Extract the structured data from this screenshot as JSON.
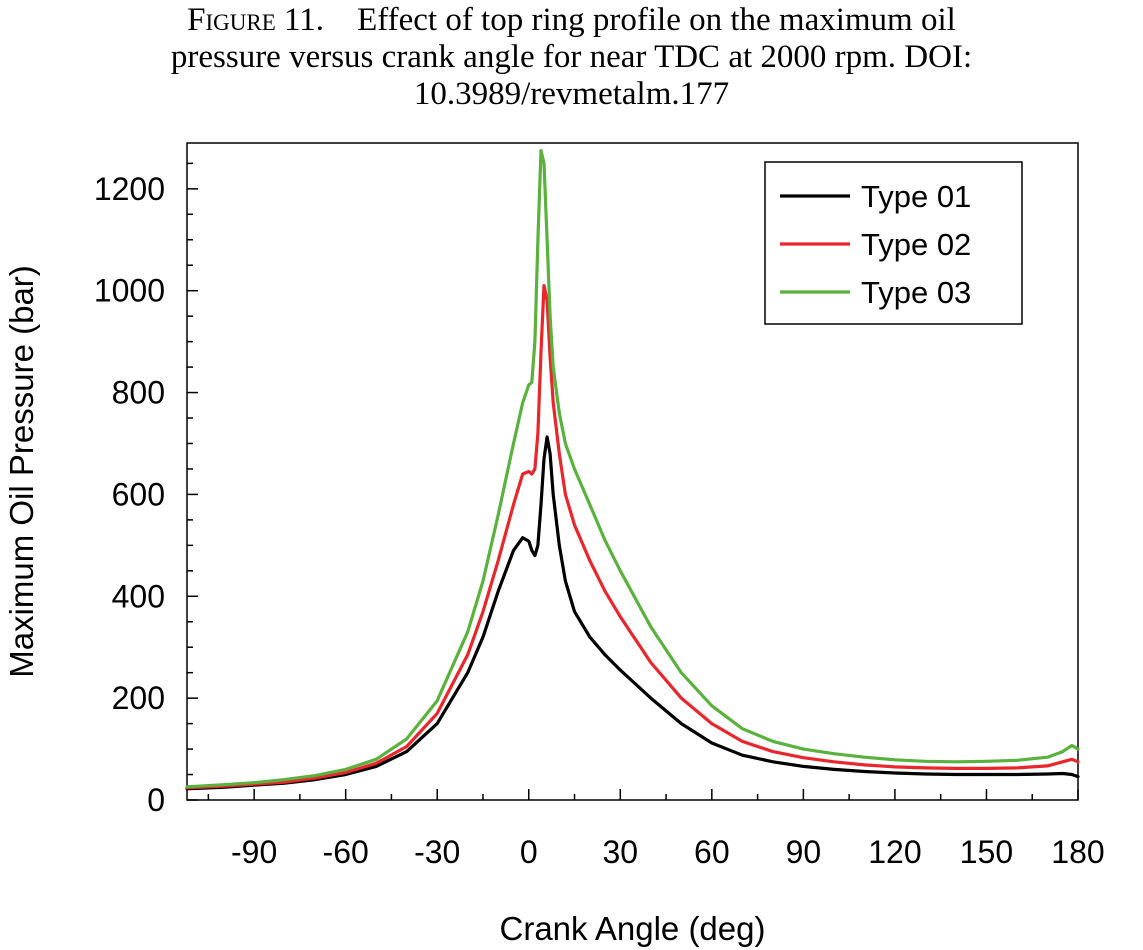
{
  "caption": {
    "prefix": "Figure 11.",
    "line1": "Effect of top ring profile on the maximum oil",
    "line2": "pressure versus crank angle for near TDC at 2000 rpm. DOI:",
    "line3": "10.3989/revmetalm.177"
  },
  "chart_data": {
    "type": "line",
    "title": "",
    "xlabel": "Crank Angle (deg)",
    "ylabel": "Maximum Oil Pressure (bar)",
    "xlim": [
      -112,
      180
    ],
    "ylim": [
      0,
      1290
    ],
    "xticks": [
      -90,
      -60,
      -30,
      0,
      30,
      60,
      90,
      120,
      150,
      180
    ],
    "yticks": [
      0,
      200,
      400,
      600,
      800,
      1000,
      1200
    ],
    "grid": false,
    "legend_position": "top-right",
    "series": [
      {
        "name": "Type 01",
        "color": "#000000",
        "x": [
          -112,
          -100,
          -90,
          -80,
          -70,
          -60,
          -50,
          -40,
          -30,
          -20,
          -15,
          -10,
          -5,
          -2,
          0,
          1,
          2,
          3,
          4,
          5,
          6,
          7,
          8,
          10,
          12,
          15,
          20,
          25,
          30,
          40,
          50,
          60,
          70,
          80,
          90,
          100,
          110,
          120,
          130,
          140,
          150,
          160,
          170,
          175,
          178,
          180
        ],
        "y": [
          22,
          25,
          29,
          33,
          40,
          50,
          66,
          95,
          150,
          250,
          320,
          410,
          490,
          515,
          508,
          490,
          480,
          500,
          580,
          670,
          713,
          680,
          600,
          500,
          430,
          370,
          320,
          285,
          255,
          200,
          150,
          112,
          88,
          75,
          66,
          60,
          56,
          53,
          51,
          50,
          50,
          50,
          51,
          52,
          50,
          46
        ]
      },
      {
        "name": "Type 02",
        "color": "#e8262b",
        "x": [
          -112,
          -100,
          -90,
          -80,
          -70,
          -60,
          -50,
          -40,
          -30,
          -20,
          -15,
          -10,
          -5,
          -2,
          0,
          1,
          2,
          3,
          4,
          5,
          6,
          7,
          8,
          10,
          12,
          15,
          20,
          25,
          30,
          40,
          50,
          60,
          70,
          80,
          90,
          100,
          110,
          120,
          130,
          140,
          150,
          160,
          170,
          175,
          178,
          180
        ],
        "y": [
          24,
          27,
          31,
          35,
          43,
          54,
          72,
          105,
          170,
          285,
          370,
          470,
          580,
          640,
          645,
          640,
          650,
          720,
          880,
          1010,
          980,
          870,
          780,
          680,
          600,
          540,
          470,
          410,
          360,
          270,
          200,
          150,
          115,
          95,
          83,
          75,
          69,
          65,
          63,
          62,
          62,
          63,
          67,
          75,
          80,
          75
        ]
      },
      {
        "name": "Type 03",
        "color": "#5ab13e",
        "x": [
          -112,
          -100,
          -90,
          -80,
          -70,
          -60,
          -50,
          -40,
          -30,
          -20,
          -15,
          -10,
          -5,
          -2,
          0,
          1,
          2,
          3,
          4,
          5,
          6,
          7,
          8,
          10,
          12,
          15,
          20,
          25,
          30,
          40,
          50,
          60,
          70,
          80,
          90,
          100,
          110,
          120,
          130,
          140,
          150,
          160,
          170,
          175,
          178,
          180
        ],
        "y": [
          26,
          30,
          34,
          40,
          48,
          60,
          80,
          120,
          195,
          330,
          430,
          560,
          700,
          780,
          815,
          820,
          900,
          1100,
          1275,
          1250,
          1100,
          950,
          850,
          760,
          700,
          650,
          580,
          510,
          450,
          340,
          250,
          185,
          140,
          115,
          100,
          91,
          84,
          79,
          76,
          75,
          76,
          78,
          84,
          95,
          107,
          100
        ]
      }
    ]
  }
}
